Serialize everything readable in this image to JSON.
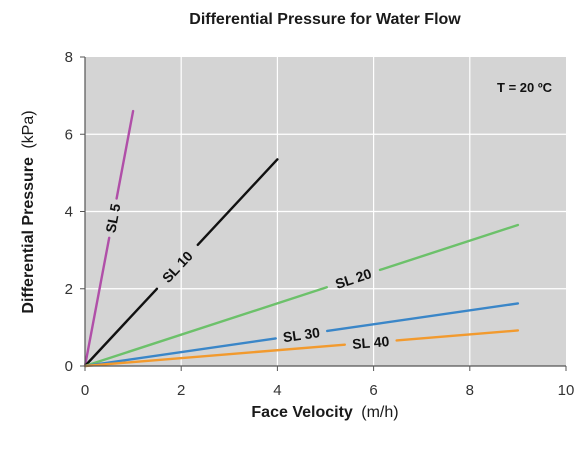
{
  "chart_data": {
    "type": "line",
    "title": "Differential Pressure for Water Flow",
    "xlabel": "Face Velocity",
    "xlabel_unit": "(m/h)",
    "ylabel": "Differential Pressure",
    "ylabel_unit": "(kPa)",
    "xlim": [
      0,
      10
    ],
    "ylim": [
      0,
      8
    ],
    "xticks": [
      0,
      2,
      4,
      6,
      8,
      10
    ],
    "yticks": [
      0,
      2,
      4,
      6,
      8
    ],
    "grid": true,
    "background": "#d4d4d4",
    "annotation": "T = 20 ºC",
    "series": [
      {
        "name": "SL 5",
        "color": "#b04fa8",
        "x": [
          0,
          1.0
        ],
        "y": [
          0,
          6.6
        ]
      },
      {
        "name": "SL 10",
        "color": "#111111",
        "x": [
          0,
          4.0
        ],
        "y": [
          0,
          5.35
        ]
      },
      {
        "name": "SL 20",
        "color": "#6cc16a",
        "x": [
          0,
          9.0
        ],
        "y": [
          0,
          3.65
        ]
      },
      {
        "name": "SL 30",
        "color": "#3a86c8",
        "x": [
          0,
          9.0
        ],
        "y": [
          0,
          1.62
        ]
      },
      {
        "name": "SL 40",
        "color": "#f29a2e",
        "x": [
          0,
          9.0
        ],
        "y": [
          0,
          0.92
        ]
      }
    ]
  }
}
